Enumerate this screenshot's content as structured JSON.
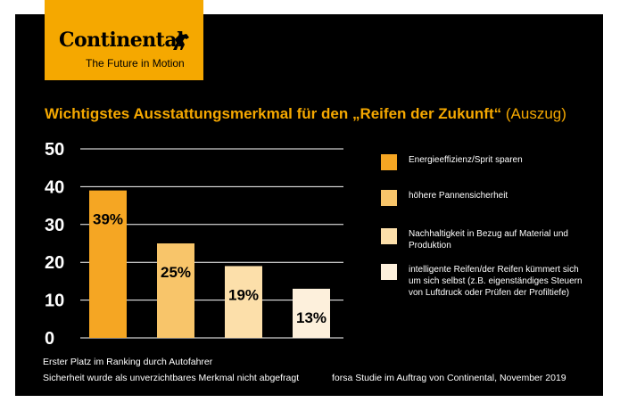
{
  "brand": {
    "name": "Continental",
    "tagline": "The Future in Motion",
    "color": "#f5a800",
    "icon": "horse-icon"
  },
  "chart_data": {
    "type": "bar",
    "title": "Wichtigstes Ausstattungsmerkmal für den „Reifen der Zukunft“",
    "subtitle": "(Auszug)",
    "categories": [
      "Energieeffizienz/Sprit sparen",
      "höhere Pannensicherheit",
      "Nachhaltigkeit in Bezug auf Material und Produktion",
      "intelligente Reifen/der Reifen kümmert sich um sich selbst (z.B. eigenständiges Steuern von Luftdruck oder Prüfen der Profiltiefe)"
    ],
    "values": [
      39,
      25,
      19,
      13
    ],
    "data_labels": [
      "39%",
      "25%",
      "19%",
      "13%"
    ],
    "colors": [
      "#f5a623",
      "#f8c56a",
      "#fcdfaa",
      "#fdf0dc"
    ],
    "yticks": [
      "0",
      "10",
      "20",
      "30",
      "40",
      "50"
    ],
    "ylim": [
      0,
      50
    ],
    "grid": true,
    "legend_position": "right",
    "xlabel": "",
    "ylabel": ""
  },
  "footer": {
    "note1": "Erster Platz im Ranking durch Autofahrer",
    "note2": "Sicherheit wurde als unverzichtbares Merkmal nicht abgefragt",
    "source": "forsa Studie im Auftrag von Continental, November 2019"
  }
}
